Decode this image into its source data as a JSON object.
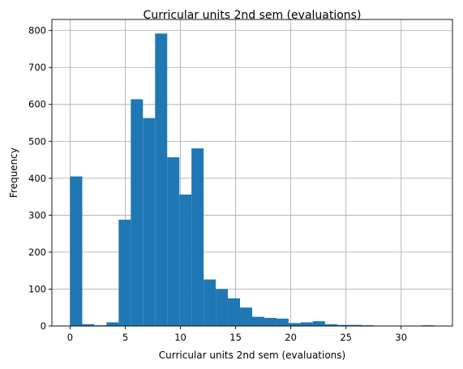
{
  "chart_data": {
    "type": "bar",
    "title": "Curricular units 2nd sem (evaluations)",
    "xlabel": "Curricular units 2nd sem (evaluations)",
    "ylabel": "Frequency",
    "xlim": [
      -1.65,
      34.65
    ],
    "ylim": [
      0,
      830
    ],
    "grid": true,
    "bar_color": "#1f77b4",
    "bin_width": 1.1,
    "bin_starts": [
      0,
      1.1,
      2.2,
      3.3,
      4.4,
      5.5,
      6.6,
      7.7,
      8.8,
      9.9,
      11.0,
      12.1,
      13.2,
      14.3,
      15.4,
      16.5,
      17.6,
      18.7,
      19.8,
      20.9,
      22.0,
      23.1,
      24.2,
      25.3,
      26.4,
      27.5,
      28.6,
      29.7,
      30.8,
      31.9
    ],
    "values": [
      405,
      5,
      2,
      10,
      288,
      614,
      563,
      792,
      457,
      356,
      481,
      126,
      100,
      75,
      50,
      25,
      22,
      20,
      8,
      10,
      13,
      5,
      3,
      3,
      2,
      0,
      0,
      0,
      0,
      2
    ],
    "xticks": [
      0,
      5,
      10,
      15,
      20,
      25,
      30
    ],
    "xtick_labels": [
      "0",
      "5",
      "10",
      "15",
      "20",
      "25",
      "30"
    ],
    "yticks": [
      0,
      100,
      200,
      300,
      400,
      500,
      600,
      700,
      800
    ],
    "ytick_labels": [
      "0",
      "100",
      "200",
      "300",
      "400",
      "500",
      "600",
      "700",
      "800"
    ]
  }
}
